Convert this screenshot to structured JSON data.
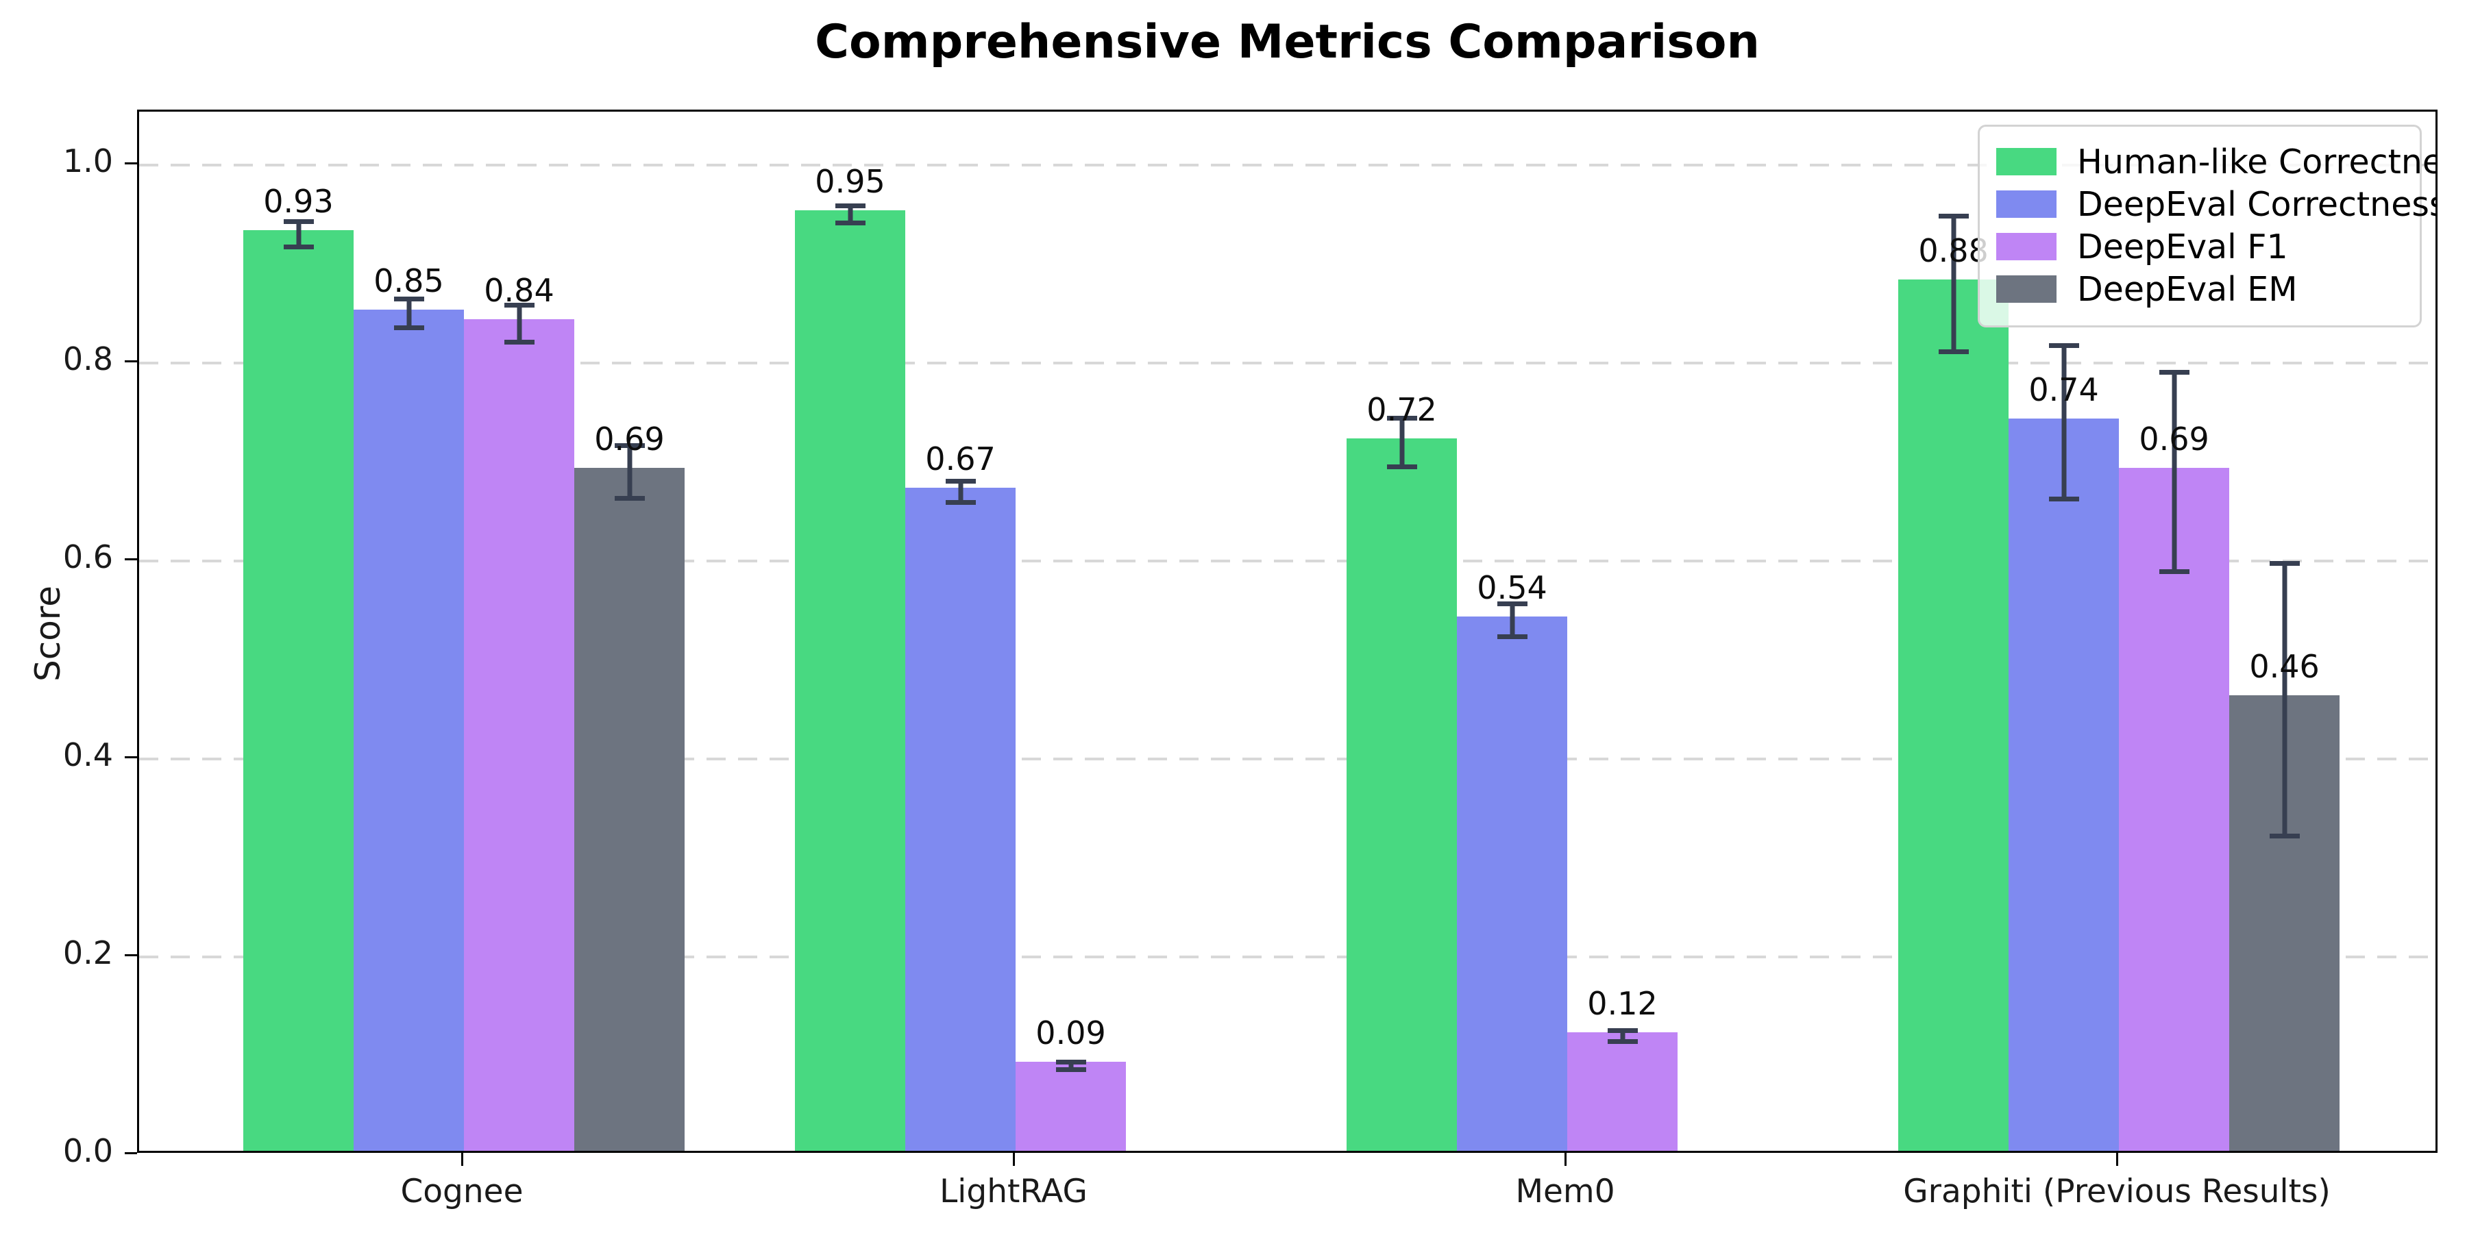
{
  "title": "Comprehensive Metrics Comparison",
  "chart_data": {
    "type": "bar",
    "title": "Comprehensive Metrics Comparison",
    "xlabel": "",
    "ylabel": "Score",
    "ylim": [
      0.0,
      1.05
    ],
    "yticks": [
      "0.0",
      "0.2",
      "0.4",
      "0.6",
      "0.8",
      "1.0"
    ],
    "grid": "horizontal dashed gridlines at each y tick",
    "legend_position": "upper-right",
    "background": "#ffffff",
    "grid_color": "#d8d8d8",
    "error_bar_color": "#373f51",
    "categories": [
      "Cognee",
      "LightRAG",
      "Mem0",
      "Graphiti (Previous Results)"
    ],
    "series": [
      {
        "name": "Human-like Correctness",
        "color": "#48d981",
        "values": [
          0.93,
          0.95,
          0.72,
          0.88
        ],
        "errors": [
          0.015,
          0.011,
          0.027,
          0.071
        ],
        "labels": [
          "0.93",
          "0.95",
          "0.72",
          "0.88"
        ]
      },
      {
        "name": "DeepEval Correctness",
        "color": "#7f8af0",
        "values": [
          0.85,
          0.67,
          0.54,
          0.74
        ],
        "errors": [
          0.017,
          0.013,
          0.019,
          0.08
        ],
        "labels": [
          "0.85",
          "0.67",
          "0.54",
          "0.74"
        ]
      },
      {
        "name": "DeepEval F1",
        "color": "#bf85f5",
        "values": [
          0.84,
          0.09,
          0.12,
          0.69
        ],
        "errors": [
          0.021,
          0.006,
          0.008,
          0.103
        ],
        "labels": [
          "0.84",
          "0.09",
          "0.12",
          "0.69"
        ]
      },
      {
        "name": "DeepEval EM",
        "color": "#6d7480",
        "values": [
          0.69,
          0.0,
          0.0,
          0.46
        ],
        "errors": [
          0.029,
          0.004,
          0.004,
          0.14
        ],
        "labels": [
          "0.69",
          "",
          "",
          "0.46"
        ]
      }
    ]
  }
}
